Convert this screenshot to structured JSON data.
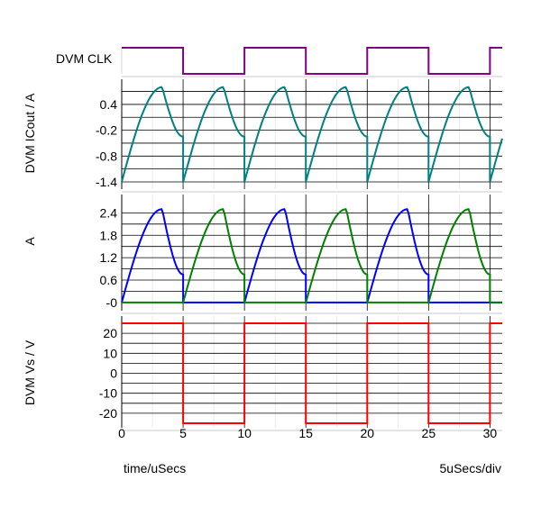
{
  "chart_data": [
    {
      "type": "line",
      "panel": "digital",
      "ylabel": "DVM CLK",
      "xlim": [
        0,
        31
      ],
      "signal": {
        "color": "#800080",
        "high_intervals": [
          [
            0,
            5
          ],
          [
            10,
            15
          ],
          [
            20,
            25
          ],
          [
            30,
            31
          ]
        ],
        "low_intervals": [
          [
            5,
            10
          ],
          [
            15,
            20
          ],
          [
            25,
            30
          ]
        ]
      }
    },
    {
      "type": "line",
      "panel": "analog",
      "ylabel": "DVM ICout / A",
      "xlim": [
        0,
        31
      ],
      "ylim": [
        -1.4,
        0.9
      ],
      "yticks": [
        "0.4",
        "-0.2",
        "-0.8",
        "-1.4"
      ],
      "ytick_values": [
        0.4,
        -0.2,
        -0.8,
        -1.4
      ],
      "grid": true,
      "series": [
        {
          "color": "#008080",
          "periods": [
            [
              0,
              5
            ],
            [
              5,
              10
            ],
            [
              10,
              15
            ],
            [
              15,
              20
            ],
            [
              20,
              25
            ],
            [
              25,
              30
            ],
            [
              30,
              31
            ]
          ],
          "start_value": -1.4,
          "peak_value": 0.8,
          "end_value": -0.35,
          "peak_time_in_period": 3.3
        }
      ]
    },
    {
      "type": "line",
      "panel": "analog",
      "ylabel": "A",
      "xlim": [
        0,
        31
      ],
      "ylim": [
        -0.05,
        2.65
      ],
      "yticks": [
        "2.4",
        "1.8",
        "1.2",
        "0.6",
        "-0"
      ],
      "ytick_values": [
        2.4,
        1.8,
        1.2,
        0.6,
        0
      ],
      "grid": true,
      "series": [
        {
          "color": "#0000ff",
          "active_periods": [
            [
              0,
              5
            ],
            [
              10,
              15
            ],
            [
              20,
              25
            ]
          ],
          "peak_value": 2.5,
          "end_value": 0.75,
          "peak_time_in_period": 3.3
        },
        {
          "color": "#008000",
          "active_periods": [
            [
              5,
              10
            ],
            [
              15,
              20
            ],
            [
              25,
              30
            ]
          ],
          "peak_value": 2.5,
          "end_value": 0.75,
          "peak_time_in_period": 3.3
        }
      ]
    },
    {
      "type": "line",
      "panel": "analog",
      "ylabel": "DVM Vs / V",
      "xlim": [
        0,
        31
      ],
      "ylim": [
        -25,
        25
      ],
      "yticks": [
        "20",
        "10",
        "0",
        "-10",
        "-20"
      ],
      "ytick_values": [
        20,
        10,
        0,
        -10,
        -20
      ],
      "grid": true,
      "series": [
        {
          "color": "#ff0000",
          "square_wave": {
            "high": 25,
            "low": -25,
            "high_intervals": [
              [
                0,
                5
              ],
              [
                10,
                15
              ],
              [
                20,
                25
              ],
              [
                30,
                31
              ]
            ],
            "low_intervals": [
              [
                5,
                10
              ],
              [
                15,
                20
              ],
              [
                25,
                30
              ]
            ]
          }
        }
      ]
    }
  ],
  "x_axis": {
    "ticks": [
      "0",
      "5",
      "10",
      "15",
      "20",
      "25",
      "30"
    ],
    "tick_values": [
      0,
      5,
      10,
      15,
      20,
      25,
      30
    ],
    "xlabel": "time/uSecs",
    "scale_label": "5uSecs/div"
  }
}
